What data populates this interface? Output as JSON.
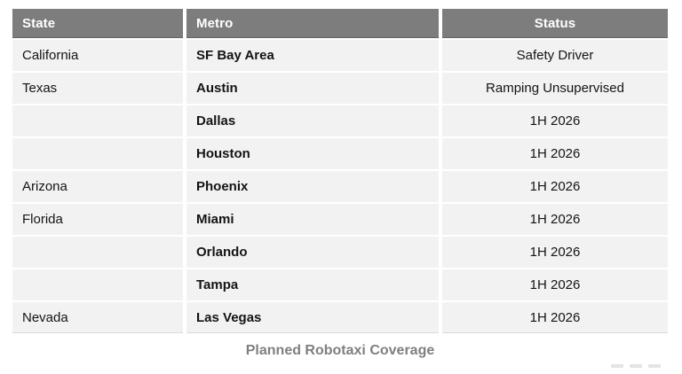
{
  "caption": "Planned Robotaxi Coverage",
  "colors": {
    "header_bg": "#7d7d7d",
    "header_text": "#ffffff",
    "row_bg": "#f2f2f2",
    "body_text": "#141414",
    "caption_text": "#7f7f7f",
    "page_bg": "#ffffff"
  },
  "chart_data": {
    "type": "table",
    "title": "Planned Robotaxi Coverage",
    "columns": [
      "State",
      "Metro",
      "Status"
    ],
    "rows": [
      [
        "California",
        "SF Bay Area",
        "Safety Driver"
      ],
      [
        "Texas",
        "Austin",
        "Ramping Unsupervised"
      ],
      [
        "",
        "Dallas",
        "1H 2026"
      ],
      [
        "",
        "Houston",
        "1H 2026"
      ],
      [
        "Arizona",
        "Phoenix",
        "1H 2026"
      ],
      [
        "Florida",
        "Miami",
        "1H 2026"
      ],
      [
        "",
        "Orlando",
        "1H 2026"
      ],
      [
        "",
        "Tampa",
        "1H 2026"
      ],
      [
        "Nevada",
        "Las Vegas",
        "1H 2026"
      ]
    ],
    "layout": {
      "header_align": [
        "left",
        "left",
        "center"
      ],
      "cell_align": [
        "left",
        "left",
        "center"
      ],
      "metro_column_bold": true,
      "grid": "thin white separators between cells",
      "caption_position": "bottom-center"
    }
  }
}
